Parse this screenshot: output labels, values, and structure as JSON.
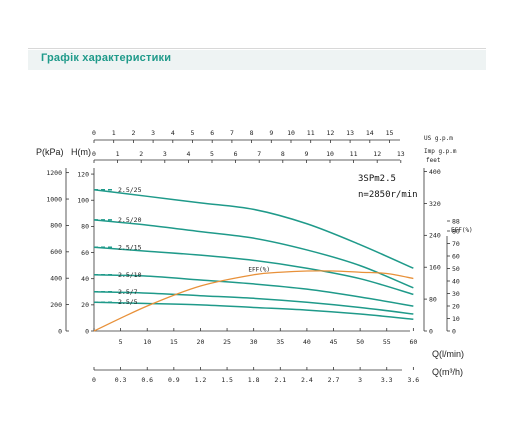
{
  "section_title": "Графік характеристики",
  "colors": {
    "head_curve": "#1f9a8a",
    "eff_curve": "#e8913a",
    "axis": "#333333",
    "title": "#1f9a8a"
  },
  "chart_data": {
    "type": "line",
    "title": "",
    "model": "3SPm2.5",
    "speed": "n=2850r/min",
    "x_main": {
      "label": "Q(l/min)",
      "ticks": [
        0,
        5,
        10,
        15,
        20,
        25,
        30,
        35,
        40,
        45,
        50,
        55,
        60
      ],
      "range": [
        0,
        62
      ]
    },
    "x_m3h": {
      "label": "Q(m³/h)",
      "ticks": [
        "0",
        "0.3",
        "0.6",
        "0.9",
        "1.2",
        "1.5",
        "1.8",
        "2.1",
        "2.4",
        "2.7",
        "3",
        "3.3",
        "3.6"
      ]
    },
    "x_us_gpm": {
      "label": "US g.p.m",
      "ticks": [
        "0",
        "1",
        "2",
        "3",
        "4",
        "5",
        "6",
        "7",
        "8",
        "9",
        "10",
        "11",
        "12",
        "13",
        "14",
        "15"
      ]
    },
    "x_imp_gpm": {
      "label": "Imp g.p.m",
      "ticks": [
        "0",
        "1",
        "2",
        "3",
        "4",
        "5",
        "6",
        "7",
        "8",
        "9",
        "10",
        "11",
        "12",
        "13"
      ]
    },
    "y_head_m": {
      "label": "H(m)",
      "ticks": [
        0,
        20,
        40,
        60,
        80,
        100,
        120
      ],
      "range": [
        0,
        130
      ]
    },
    "y_pressure_kpa": {
      "label": "P(kPa)",
      "ticks": [
        0,
        200,
        400,
        600,
        800,
        1000,
        1200
      ]
    },
    "y_feet": {
      "label": "feet",
      "ticks": [
        0,
        80,
        160,
        240,
        320,
        400
      ]
    },
    "y_eff": {
      "label": "EFF(%)",
      "ticks": [
        0,
        10,
        20,
        30,
        40,
        50,
        60,
        70,
        80,
        88
      ],
      "range": [
        0,
        100
      ]
    },
    "series": [
      {
        "name": "2.5/25",
        "x": [
          0,
          10,
          20,
          30,
          40,
          50,
          60
        ],
        "y": [
          108,
          103,
          98,
          93,
          82,
          66,
          48
        ]
      },
      {
        "name": "2.5/20",
        "x": [
          0,
          10,
          20,
          30,
          40,
          50,
          60
        ],
        "y": [
          85,
          81,
          76,
          71,
          62,
          50,
          33
        ]
      },
      {
        "name": "2.5/15",
        "x": [
          0,
          10,
          20,
          30,
          40,
          50,
          60
        ],
        "y": [
          64,
          61,
          58,
          54,
          48,
          40,
          28
        ]
      },
      {
        "name": "2.5/10",
        "x": [
          0,
          10,
          20,
          30,
          40,
          50,
          60
        ],
        "y": [
          43,
          42,
          39,
          36,
          32,
          26,
          19
        ]
      },
      {
        "name": "2.5/7",
        "x": [
          0,
          10,
          20,
          30,
          40,
          50,
          60
        ],
        "y": [
          30,
          29,
          27,
          25,
          22,
          18,
          13
        ]
      },
      {
        "name": "2.5/5",
        "x": [
          0,
          10,
          20,
          30,
          40,
          50,
          60
        ],
        "y": [
          22,
          21,
          20,
          18,
          16,
          13,
          9
        ]
      }
    ],
    "efficiency": {
      "name": "EFF(%)",
      "x": [
        0,
        10,
        20,
        30,
        35,
        40,
        45,
        50,
        55,
        60
      ],
      "y": [
        0,
        20,
        36,
        45,
        47,
        48,
        48,
        47,
        46,
        42
      ]
    }
  }
}
